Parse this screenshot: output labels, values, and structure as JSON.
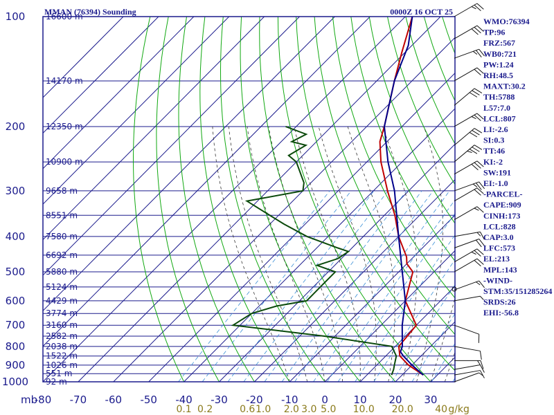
{
  "chart_data": {
    "type": "skewt-logp sounding",
    "title_left": "MMAN (76394) Sounding",
    "title_right": "0000Z 16 OCT 25",
    "pressure_axis": {
      "unit_label": "mb",
      "ticks": [
        100,
        200,
        300,
        400,
        500,
        600,
        700,
        800,
        900,
        1000
      ],
      "range": [
        100,
        1000
      ]
    },
    "temperature_axis": {
      "ticks": [
        -80,
        -70,
        -60,
        -50,
        -40,
        -30,
        -20,
        -10,
        0,
        10,
        20,
        30
      ],
      "range": [
        -80,
        40
      ]
    },
    "mixing_ratio_labels": [
      {
        "label": "0.1",
        "p_ref": 1000,
        "t_ref": -40
      },
      {
        "label": "0.2",
        "p_ref": 1000,
        "t_ref": -34
      },
      {
        "label": "0.6",
        "p_ref": 1000,
        "t_ref": -22
      },
      {
        "label": "1.0",
        "p_ref": 1000,
        "t_ref": -17.5
      },
      {
        "label": "2.0",
        "p_ref": 1000,
        "t_ref": -9.5
      },
      {
        "label": "3.0",
        "p_ref": 1000,
        "t_ref": -4.5
      },
      {
        "label": "5.0",
        "p_ref": 1000,
        "t_ref": 1
      },
      {
        "label": "10.0",
        "p_ref": 1000,
        "t_ref": 11
      },
      {
        "label": "20.0",
        "p_ref": 1000,
        "t_ref": 22
      },
      {
        "label": "40",
        "p_ref": 1000,
        "t_ref": 33
      },
      {
        "label": "g/kg",
        "p_ref": 1000,
        "t_ref": 38
      }
    ],
    "height_labels": [
      {
        "p": 100,
        "text": "16600 m"
      },
      {
        "p": 150,
        "text": "14170 m"
      },
      {
        "p": 200,
        "text": "12350 m"
      },
      {
        "p": 250,
        "text": "10900 m"
      },
      {
        "p": 300,
        "text": "9658 m"
      },
      {
        "p": 350,
        "text": "8551 m"
      },
      {
        "p": 400,
        "text": "7580 m"
      },
      {
        "p": 450,
        "text": "6692 m"
      },
      {
        "p": 500,
        "text": "5880 m"
      },
      {
        "p": 550,
        "text": "5124 m"
      },
      {
        "p": 600,
        "text": "4429 m"
      },
      {
        "p": 650,
        "text": "3774 m"
      },
      {
        "p": 700,
        "text": "3160 m"
      },
      {
        "p": 750,
        "text": "2582 m"
      },
      {
        "p": 800,
        "text": "2038 m"
      },
      {
        "p": 850,
        "text": "1522 m"
      },
      {
        "p": 900,
        "text": "1026 m"
      },
      {
        "p": 950,
        "text": "551 m"
      },
      {
        "p": 1000,
        "text": "92 m"
      }
    ],
    "series": [
      {
        "name": "temperature",
        "color": "#c00000",
        "points": [
          [
            958,
            26
          ],
          [
            900,
            19
          ],
          [
            850,
            14
          ],
          [
            800,
            11
          ],
          [
            700,
            10
          ],
          [
            600,
            0
          ],
          [
            500,
            -6
          ],
          [
            475,
            -10
          ],
          [
            455,
            -12
          ],
          [
            400,
            -20
          ],
          [
            350,
            -27
          ],
          [
            300,
            -36
          ],
          [
            250,
            -46
          ],
          [
            220,
            -52
          ],
          [
            200,
            -55
          ],
          [
            150,
            -65
          ],
          [
            125,
            -71
          ],
          [
            100,
            -78
          ]
        ]
      },
      {
        "name": "dewpoint",
        "color": "#0b4a0b",
        "points": [
          [
            958,
            17
          ],
          [
            925,
            16
          ],
          [
            900,
            15
          ],
          [
            850,
            13
          ],
          [
            800,
            9
          ],
          [
            750,
            -13
          ],
          [
            700,
            -42
          ],
          [
            650,
            -40
          ],
          [
            620,
            -35
          ],
          [
            600,
            -28
          ],
          [
            550,
            -28
          ],
          [
            500,
            -28
          ],
          [
            480,
            -35
          ],
          [
            460,
            -31
          ],
          [
            440,
            -30
          ],
          [
            430,
            -34
          ],
          [
            400,
            -46
          ],
          [
            370,
            -56
          ],
          [
            320,
            -73
          ],
          [
            300,
            -60
          ],
          [
            285,
            -62
          ],
          [
            250,
            -70
          ],
          [
            240,
            -74
          ],
          [
            225,
            -72
          ],
          [
            220,
            -77
          ],
          [
            210,
            -75
          ],
          [
            200,
            -83
          ]
        ]
      },
      {
        "name": "parcel",
        "color": "#00008b",
        "points": [
          [
            958,
            26
          ],
          [
            900,
            20
          ],
          [
            850,
            15
          ],
          [
            828,
            13
          ],
          [
            800,
            12
          ],
          [
            700,
            6
          ],
          [
            600,
            0
          ],
          [
            500,
            -9
          ],
          [
            400,
            -20
          ],
          [
            300,
            -34
          ],
          [
            250,
            -44
          ],
          [
            200,
            -55
          ],
          [
            150,
            -65
          ],
          [
            120,
            -71
          ],
          [
            100,
            -78
          ]
        ]
      }
    ],
    "wind_barbs": [
      {
        "p": 1000,
        "dir": 70,
        "spd": 5
      },
      {
        "p": 958,
        "dir": 80,
        "spd": 10
      },
      {
        "p": 925,
        "dir": 80,
        "spd": 10
      },
      {
        "p": 875,
        "dir": 90,
        "spd": 15
      },
      {
        "p": 800,
        "dir": 100,
        "spd": 10
      },
      {
        "p": 700,
        "dir": 110,
        "spd": 10
      },
      {
        "p": 600,
        "dir": 80,
        "spd": 5
      },
      {
        "p": 560,
        "dir": 70,
        "spd": 15
      },
      {
        "p": 500,
        "dir": 60,
        "spd": 20
      },
      {
        "p": 470,
        "dir": 60,
        "spd": 25
      },
      {
        "p": 430,
        "dir": 70,
        "spd": 20
      },
      {
        "p": 400,
        "dir": 80,
        "spd": 15
      },
      {
        "p": 360,
        "dir": 60,
        "spd": 15
      },
      {
        "p": 320,
        "dir": 60,
        "spd": 20
      },
      {
        "p": 300,
        "dir": 70,
        "spd": 25
      },
      {
        "p": 270,
        "dir": 60,
        "spd": 30
      },
      {
        "p": 250,
        "dir": 50,
        "spd": 35
      },
      {
        "p": 225,
        "dir": 50,
        "spd": 30
      },
      {
        "p": 200,
        "dir": 60,
        "spd": 25
      },
      {
        "p": 175,
        "dir": 50,
        "spd": 30
      },
      {
        "p": 150,
        "dir": 60,
        "spd": 20
      },
      {
        "p": 130,
        "dir": 70,
        "spd": 25
      },
      {
        "p": 115,
        "dir": 60,
        "spd": 30
      },
      {
        "p": 100,
        "dir": 60,
        "spd": 25
      }
    ],
    "indices": [
      "WMO:76394",
      "TP:96",
      "FRZ:567",
      "WB0:721",
      "PW:1.24",
      "RH:48.5",
      "MAXT:30.2",
      "TH:5788",
      "L57:7.0",
      "LCL:807",
      "LI:-2.6",
      "SI:0.3",
      "TT:46",
      "KI:-2",
      "SW:191",
      "EI:-1.0",
      "-PARCEL-",
      "CAPE:909",
      "CINH:173",
      "LCL:828",
      "CAP:3.0",
      "LFC:573",
      "EL:213",
      "MPL:143",
      "-WIND-",
      "STM:35/151285264",
      "SRDS:26",
      "EHI:-56.8"
    ],
    "colors": {
      "frame": "#1a1a8c",
      "isotherm": "#1a1a8c",
      "dry_adiabat": "#10a810",
      "moist_adiabat": "#333333",
      "mixing_ratio": "#3a8fd6",
      "mixing_label": "#8a7a1a"
    }
  }
}
